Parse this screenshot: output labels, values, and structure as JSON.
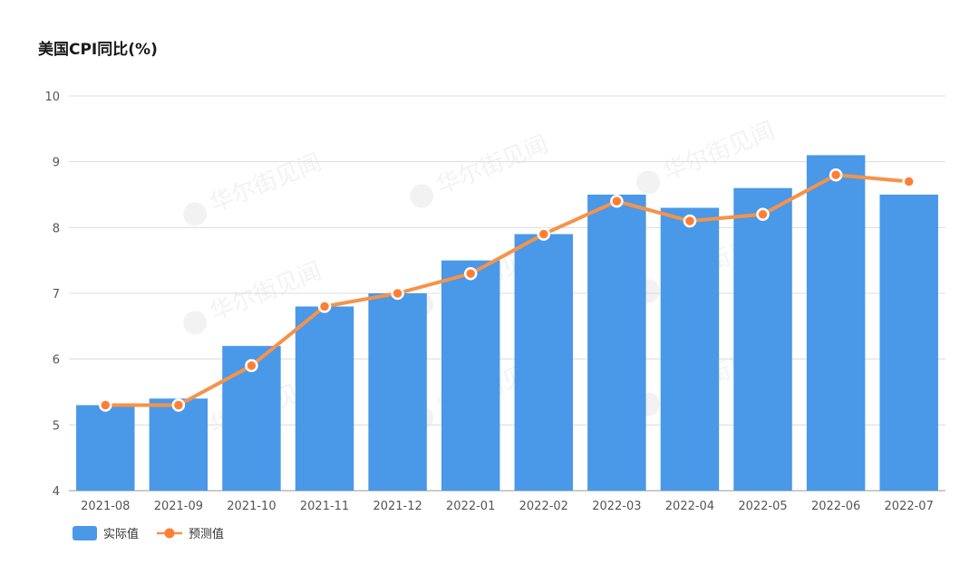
{
  "chart_data": {
    "type": "bar",
    "title": "美国CPI同比(%)",
    "categories": [
      "2021-08",
      "2021-09",
      "2021-10",
      "2021-11",
      "2021-12",
      "2022-01",
      "2022-02",
      "2022-03",
      "2022-04",
      "2022-05",
      "2022-06",
      "2022-07"
    ],
    "series": [
      {
        "name": "实际值",
        "type": "bar",
        "color": "#4a98e8",
        "values": [
          5.3,
          5.4,
          6.2,
          6.8,
          7.0,
          7.5,
          7.9,
          8.5,
          8.3,
          8.6,
          9.1,
          8.5
        ]
      },
      {
        "name": "预测值",
        "type": "line",
        "color": "#f5934a",
        "marker_color": "#ff7f32",
        "values": [
          5.3,
          5.3,
          5.9,
          6.8,
          7.0,
          7.3,
          7.9,
          8.4,
          8.1,
          8.2,
          8.8,
          8.7
        ]
      }
    ],
    "ylim": [
      4,
      10
    ],
    "yticks": [
      4,
      5,
      6,
      7,
      8,
      9,
      10
    ],
    "grid": true,
    "legend_position": "bottom-left"
  },
  "watermark": "华尔街见闻"
}
